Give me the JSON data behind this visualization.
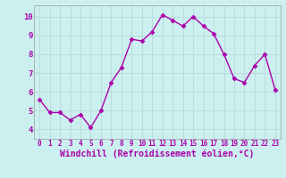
{
  "x": [
    0,
    1,
    2,
    3,
    4,
    5,
    6,
    7,
    8,
    9,
    10,
    11,
    12,
    13,
    14,
    15,
    16,
    17,
    18,
    19,
    20,
    21,
    22,
    23
  ],
  "y": [
    5.6,
    4.9,
    4.9,
    4.5,
    4.8,
    4.1,
    5.0,
    6.5,
    7.3,
    8.8,
    8.7,
    9.2,
    10.1,
    9.8,
    9.5,
    10.0,
    9.5,
    9.1,
    8.0,
    6.7,
    6.5,
    7.4,
    8.0,
    6.1
  ],
  "line_color": "#aa00aa",
  "marker": "D",
  "marker_size": 2.5,
  "xlabel": "Windchill (Refroidissement éolien,°C)",
  "ylim": [
    3.5,
    10.6
  ],
  "xlim": [
    -0.5,
    23.5
  ],
  "yticks": [
    4,
    5,
    6,
    7,
    8,
    9,
    10
  ],
  "xticks": [
    0,
    1,
    2,
    3,
    4,
    5,
    6,
    7,
    8,
    9,
    10,
    11,
    12,
    13,
    14,
    15,
    16,
    17,
    18,
    19,
    20,
    21,
    22,
    23
  ],
  "background_color": "#ccf0f0",
  "grid_color": "#bbdddd",
  "tick_color": "#aa00aa",
  "label_color": "#aa00aa",
  "line_width": 1.0
}
